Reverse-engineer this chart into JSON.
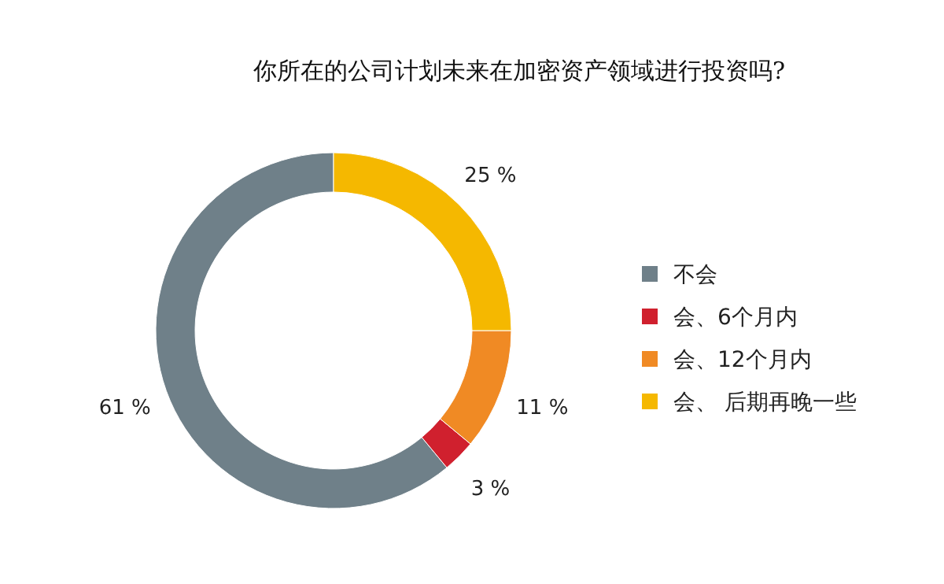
{
  "chart_data": {
    "type": "donut",
    "title": "你所在的公司计划未来在加密资产领域进行投资吗?",
    "categories": [
      "不会",
      "会、6个月内",
      "会、12个月内",
      "会、 后期再晚一些"
    ],
    "values": [
      61,
      3,
      11,
      25
    ],
    "colors": [
      "#6f8089",
      "#d0202e",
      "#f08a24",
      "#f5b800"
    ],
    "value_labels": [
      "61 %",
      "3 %",
      "11 %",
      "25 %"
    ],
    "legend": "right"
  }
}
